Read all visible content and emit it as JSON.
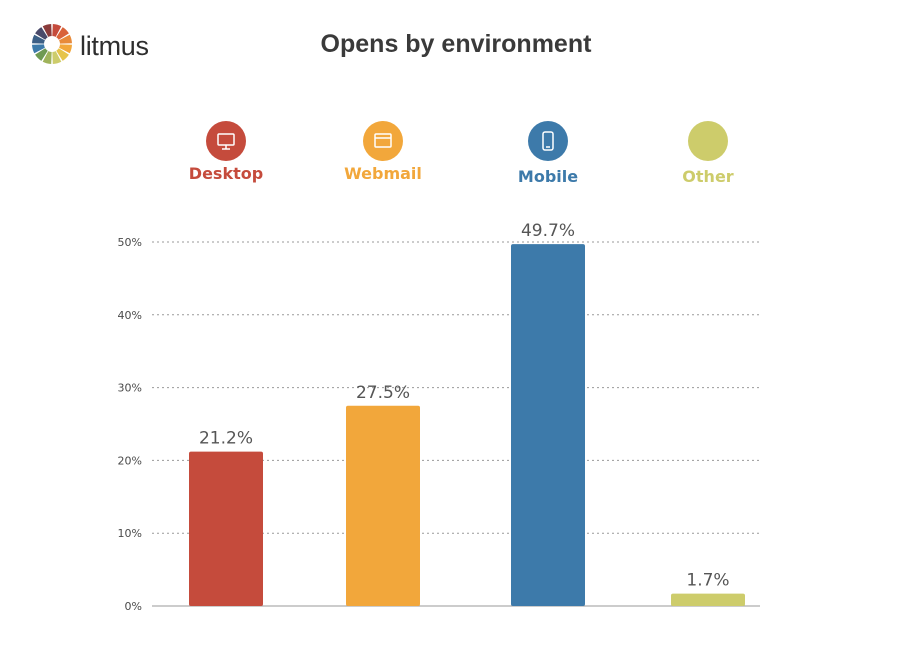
{
  "brand": {
    "name": "litmus"
  },
  "chart_data": {
    "type": "bar",
    "title": "Opens by environment",
    "categories": [
      "Desktop",
      "Webmail",
      "Mobile",
      "Other"
    ],
    "values": [
      21.2,
      27.5,
      49.7,
      1.7
    ],
    "value_labels": [
      "21.2%",
      "27.5%",
      "49.7%",
      "1.7%"
    ],
    "colors": [
      "#c54b3c",
      "#f2a73b",
      "#3d7aaa",
      "#cdcc6b"
    ],
    "icons": [
      "desktop-icon",
      "webmail-icon",
      "mobile-icon",
      "other-icon"
    ],
    "ylim": [
      0,
      50
    ],
    "yticks": [
      0,
      10,
      20,
      30,
      40,
      50
    ],
    "ytick_labels": [
      "0%",
      "10%",
      "20%",
      "30%",
      "40%",
      "50%"
    ],
    "xlabel": "",
    "ylabel": "",
    "grid": true,
    "legend": "top (icons above chart)"
  }
}
